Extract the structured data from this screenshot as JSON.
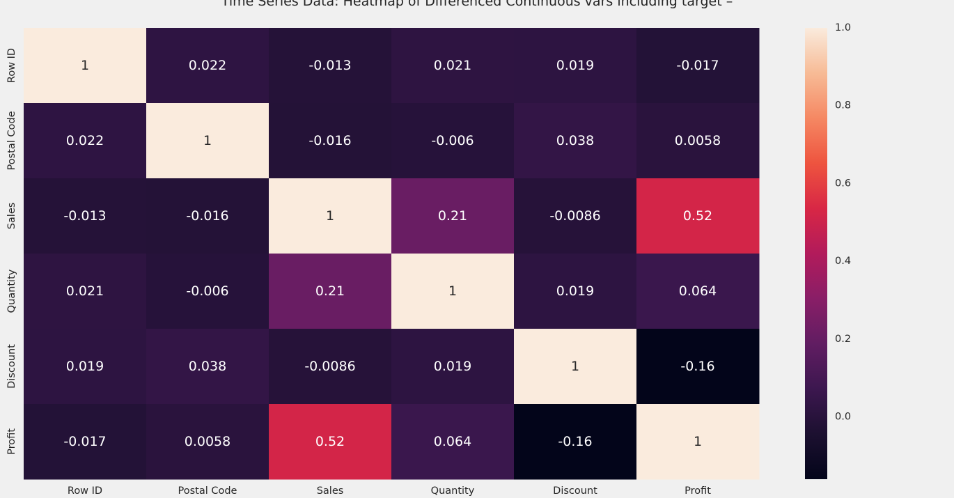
{
  "chart_data": {
    "type": "heatmap",
    "title": "Time Series Data: Heatmap of Differenced Continuous vars including target –",
    "x_categories": [
      "Row ID",
      "Postal Code",
      "Sales",
      "Quantity",
      "Discount",
      "Profit"
    ],
    "y_categories": [
      "Row ID",
      "Postal Code",
      "Sales",
      "Quantity",
      "Discount",
      "Profit"
    ],
    "values": [
      [
        1,
        0.022,
        -0.013,
        0.021,
        0.019,
        -0.017
      ],
      [
        0.022,
        1,
        -0.016,
        -0.006,
        0.038,
        0.0058
      ],
      [
        -0.013,
        -0.016,
        1,
        0.21,
        -0.0086,
        0.52
      ],
      [
        0.021,
        -0.006,
        0.21,
        1,
        0.019,
        0.064
      ],
      [
        0.019,
        0.038,
        -0.0086,
        0.019,
        1,
        -0.16
      ],
      [
        -0.017,
        0.0058,
        0.52,
        0.064,
        -0.16,
        1
      ]
    ],
    "value_labels": [
      [
        "1",
        "0.022",
        "-0.013",
        "0.021",
        "0.019",
        "-0.017"
      ],
      [
        "0.022",
        "1",
        "-0.016",
        "-0.006",
        "0.038",
        "0.0058"
      ],
      [
        "-0.013",
        "-0.016",
        "1",
        "0.21",
        "-0.0086",
        "0.52"
      ],
      [
        "0.021",
        "-0.006",
        "0.21",
        "1",
        "0.019",
        "0.064"
      ],
      [
        "0.019",
        "0.038",
        "-0.0086",
        "0.019",
        "1",
        "-0.16"
      ],
      [
        "-0.017",
        "0.0058",
        "0.52",
        "0.064",
        "-0.16",
        "1"
      ]
    ],
    "colorbar": {
      "range": [
        -0.16,
        1.0
      ],
      "ticks": [
        0.0,
        0.2,
        0.4,
        0.6,
        0.8,
        1.0
      ],
      "tick_labels": [
        "0.0",
        "0.2",
        "0.4",
        "0.6",
        "0.8",
        "1.0"
      ],
      "colormap": "rocket"
    },
    "grid": false
  }
}
